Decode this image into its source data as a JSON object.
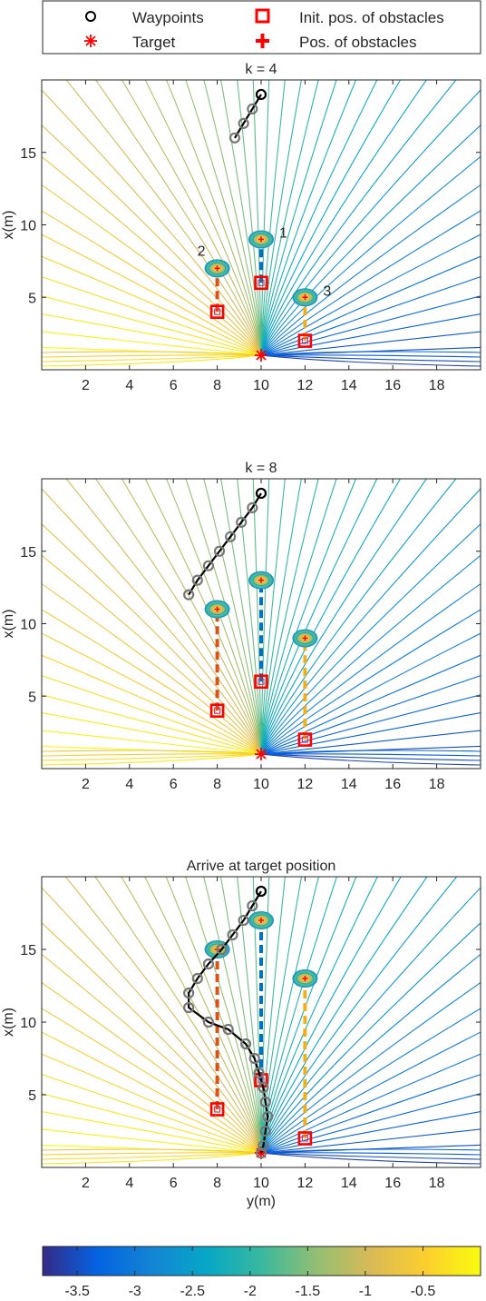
{
  "legend": {
    "entries": [
      {
        "label": "Waypoints",
        "marker": "circle",
        "color": "#000000"
      },
      {
        "label": "Init. pos. of obstacles",
        "marker": "square",
        "color": "#ff0000"
      },
      {
        "label": "Target",
        "marker": "asterisk",
        "color": "#ff0000"
      },
      {
        "label": "Pos. of obstacles",
        "marker": "plus",
        "color": "#ff0000"
      }
    ]
  },
  "colorbar": {
    "ticks": [
      "-3.5",
      "-3",
      "-2.5",
      "-2",
      "-1.5",
      "-1",
      "-0.5"
    ],
    "tick_values": [
      -3.5,
      -3,
      -2.5,
      -2,
      -1.5,
      -1,
      -0.5
    ],
    "range": [
      -3.8,
      0
    ],
    "colormap": "parula"
  },
  "chart_data": [
    {
      "type": "contour",
      "title": "k = 4",
      "xlabel": "",
      "ylabel": "x(m)",
      "xlim": [
        0,
        20
      ],
      "ylim": [
        0,
        20
      ],
      "xticks": [
        2,
        4,
        6,
        8,
        10,
        12,
        14,
        16,
        18
      ],
      "yticks": [
        5,
        10,
        15
      ],
      "target": [
        10,
        1
      ],
      "waypoints": [
        [
          10.0,
          19.0
        ],
        [
          9.6,
          18.0
        ],
        [
          9.2,
          17.0
        ],
        [
          8.8,
          16.0
        ]
      ],
      "obstacles": [
        {
          "label": "1",
          "init": [
            10,
            6
          ],
          "pos": [
            10,
            9
          ],
          "color": "#0072bd"
        },
        {
          "label": "2",
          "init": [
            8,
            4
          ],
          "pos": [
            8,
            7
          ],
          "color": "#d95319"
        },
        {
          "label": "3",
          "init": [
            12,
            2
          ],
          "pos": [
            12,
            5
          ],
          "color": "#edb120"
        }
      ]
    },
    {
      "type": "contour",
      "title": "k = 8",
      "xlabel": "",
      "ylabel": "x(m)",
      "xlim": [
        0,
        20
      ],
      "ylim": [
        0,
        20
      ],
      "xticks": [
        2,
        4,
        6,
        8,
        10,
        12,
        14,
        16,
        18
      ],
      "yticks": [
        5,
        10,
        15
      ],
      "target": [
        10,
        1
      ],
      "waypoints": [
        [
          10.0,
          19.0
        ],
        [
          9.6,
          18.0
        ],
        [
          9.1,
          17.0
        ],
        [
          8.6,
          16.0
        ],
        [
          8.1,
          15.0
        ],
        [
          7.6,
          14.0
        ],
        [
          7.1,
          13.0
        ],
        [
          6.7,
          12.0
        ]
      ],
      "obstacles": [
        {
          "label": "",
          "init": [
            10,
            6
          ],
          "pos": [
            10,
            13
          ],
          "color": "#0072bd"
        },
        {
          "label": "",
          "init": [
            8,
            4
          ],
          "pos": [
            8,
            11
          ],
          "color": "#d95319"
        },
        {
          "label": "",
          "init": [
            12,
            2
          ],
          "pos": [
            12,
            9
          ],
          "color": "#edb120"
        }
      ]
    },
    {
      "type": "contour",
      "title": "Arrive at target position",
      "xlabel": "y(m)",
      "ylabel": "x(m)",
      "xlim": [
        0,
        20
      ],
      "ylim": [
        0,
        20
      ],
      "xticks": [
        2,
        4,
        6,
        8,
        10,
        12,
        14,
        16,
        18
      ],
      "yticks": [
        5,
        10,
        15
      ],
      "target": [
        10,
        1
      ],
      "waypoints": [
        [
          10.0,
          19.0
        ],
        [
          9.6,
          18.0
        ],
        [
          9.2,
          17.0
        ],
        [
          8.7,
          16.0
        ],
        [
          8.2,
          15.0
        ],
        [
          7.6,
          14.0
        ],
        [
          7.1,
          13.0
        ],
        [
          6.7,
          12.0
        ],
        [
          6.7,
          11.0
        ],
        [
          7.6,
          10.0
        ],
        [
          8.5,
          9.5
        ],
        [
          9.3,
          8.5
        ],
        [
          9.7,
          7.5
        ],
        [
          9.9,
          6.5
        ],
        [
          10.1,
          5.5
        ],
        [
          10.2,
          4.5
        ],
        [
          10.3,
          3.5
        ],
        [
          10.2,
          2.5
        ],
        [
          10.1,
          1.5
        ],
        [
          10.0,
          1.0
        ]
      ],
      "obstacles": [
        {
          "label": "",
          "init": [
            10,
            6
          ],
          "pos": [
            10,
            17
          ],
          "color": "#0072bd"
        },
        {
          "label": "",
          "init": [
            8,
            4
          ],
          "pos": [
            8,
            15
          ],
          "color": "#d95319"
        },
        {
          "label": "",
          "init": [
            12,
            2
          ],
          "pos": [
            12,
            13
          ],
          "color": "#edb120"
        }
      ]
    }
  ]
}
